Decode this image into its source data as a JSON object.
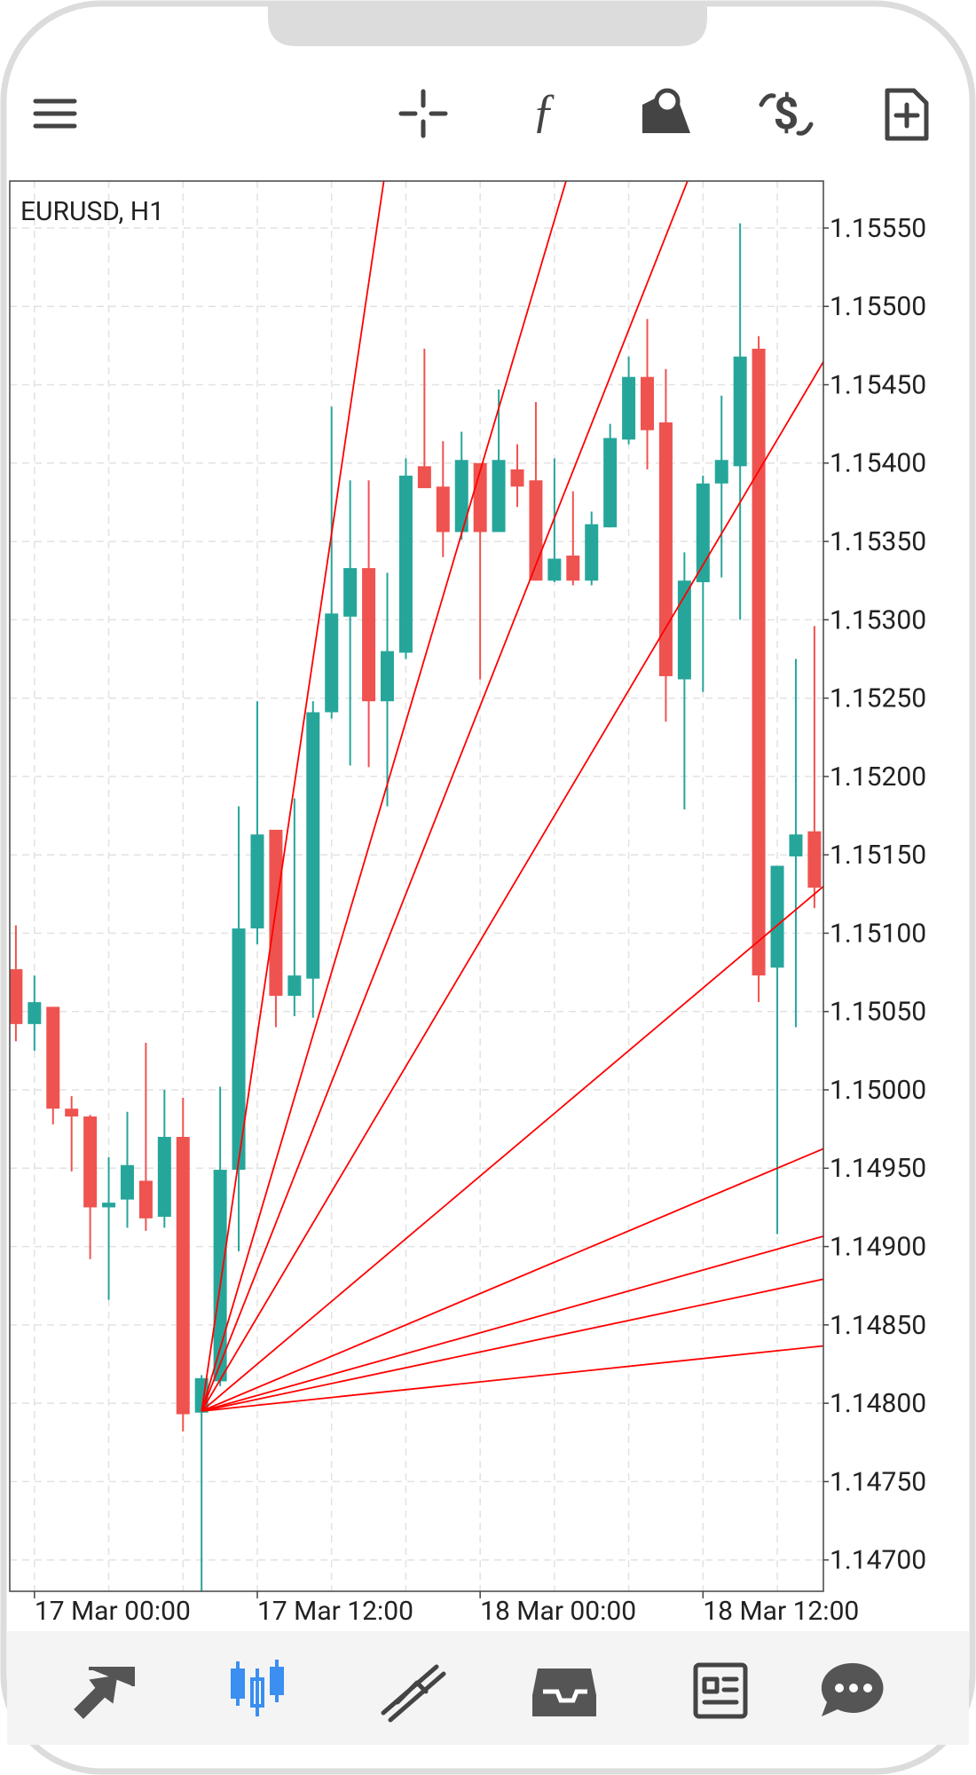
{
  "chart_data": {
    "type": "candlestick",
    "title": "EURUSD, H1",
    "categories": [
      null,
      "17 Mar 00:00",
      null,
      null,
      null,
      null,
      null,
      null,
      null,
      null,
      null,
      null,
      null,
      "17 Mar 12:00",
      null,
      null,
      null,
      null,
      null,
      null,
      null,
      null,
      null,
      null,
      null,
      "18 Mar 00:00",
      null,
      null,
      null,
      null,
      null,
      null,
      null,
      null,
      null,
      null,
      null,
      "18 Mar 12:00",
      null,
      null,
      null,
      null,
      null,
      null
    ],
    "open": [
      1.15077,
      1.15042,
      1.15053,
      1.14988,
      1.14983,
      1.14925,
      1.1493,
      1.14942,
      1.14919,
      1.1497,
      1.14794,
      1.14814,
      1.14949,
      1.15103,
      1.15166,
      1.1506,
      1.15071,
      1.15241,
      1.15302,
      1.15333,
      1.15248,
      1.15279,
      1.15398,
      1.15385,
      1.15356,
      1.154,
      1.15356,
      1.15396,
      1.15389,
      1.15325,
      1.15341,
      1.15325,
      1.15359,
      1.15415,
      1.15455,
      1.15426,
      1.15262,
      1.15324,
      1.15387,
      1.15398,
      1.15473,
      1.15078,
      1.15149,
      1.15165
    ],
    "high": [
      1.15105,
      1.15073,
      1.15053,
      1.14996,
      1.14984,
      1.14957,
      1.14986,
      1.1503,
      1.15,
      1.14995,
      1.14818,
      1.15002,
      1.15181,
      1.15248,
      1.15166,
      1.15186,
      1.15248,
      1.15436,
      1.15389,
      1.15389,
      1.1533,
      1.15403,
      1.15473,
      1.15414,
      1.1542,
      1.154,
      1.15447,
      1.15412,
      1.15439,
      1.15403,
      1.15382,
      1.15369,
      1.15425,
      1.15468,
      1.15492,
      1.1546,
      1.15343,
      1.15392,
      1.15443,
      1.15553,
      1.15481,
      1.15143,
      1.15275,
      1.15296
    ],
    "low": [
      1.15031,
      1.15025,
      1.14978,
      1.14948,
      1.14892,
      1.14866,
      1.14912,
      1.1491,
      1.14912,
      1.14782,
      1.1468,
      1.14811,
      1.14897,
      1.15093,
      1.1504,
      1.15047,
      1.15046,
      1.15237,
      1.15207,
      1.15206,
      1.15181,
      1.15275,
      1.15384,
      1.1534,
      1.15351,
      1.15262,
      1.15356,
      1.15372,
      1.15325,
      1.15324,
      1.15322,
      1.15322,
      1.15359,
      1.15412,
      1.15396,
      1.15235,
      1.15179,
      1.15254,
      1.15327,
      1.153,
      1.15056,
      1.14908,
      1.1504,
      1.15116
    ],
    "close": [
      1.15042,
      1.15056,
      1.14988,
      1.14983,
      1.14925,
      1.14928,
      1.14952,
      1.14918,
      1.1497,
      1.14793,
      1.14816,
      1.14949,
      1.15103,
      1.15163,
      1.1506,
      1.15073,
      1.15241,
      1.15304,
      1.15333,
      1.15248,
      1.1528,
      1.15392,
      1.15384,
      1.15356,
      1.15402,
      1.15356,
      1.15402,
      1.15385,
      1.15325,
      1.15339,
      1.15325,
      1.15361,
      1.15416,
      1.15455,
      1.15421,
      1.15264,
      1.15325,
      1.15387,
      1.15402,
      1.15468,
      1.15073,
      1.15143,
      1.15163,
      1.15129
    ],
    "up_color": "#26a69a",
    "down_color": "#ef5350",
    "ylim": [
      1.1468,
      1.1558
    ],
    "yticks": [
      {
        "value": 1.147,
        "label": "1.14700"
      },
      {
        "value": 1.1475,
        "label": "1.14750"
      },
      {
        "value": 1.148,
        "label": "1.14800"
      },
      {
        "value": 1.1485,
        "label": "1.14850"
      },
      {
        "value": 1.149,
        "label": "1.14900"
      },
      {
        "value": 1.1495,
        "label": "1.14950"
      },
      {
        "value": 1.15,
        "label": "1.15000"
      },
      {
        "value": 1.1505,
        "label": "1.15050"
      },
      {
        "value": 1.151,
        "label": "1.15100"
      },
      {
        "value": 1.1515,
        "label": "1.15150"
      },
      {
        "value": 1.152,
        "label": "1.15200"
      },
      {
        "value": 1.1525,
        "label": "1.15250"
      },
      {
        "value": 1.153,
        "label": "1.15300"
      },
      {
        "value": 1.1535,
        "label": "1.15350"
      },
      {
        "value": 1.154,
        "label": "1.15400"
      },
      {
        "value": 1.1545,
        "label": "1.15450"
      },
      {
        "value": 1.155,
        "label": "1.15500"
      },
      {
        "value": 1.1555,
        "label": "1.15550"
      }
    ],
    "grid": true,
    "fan": {
      "color": "#ff0000",
      "origin": {
        "x": 10,
        "y": 1.14795
      },
      "lines": [
        {
          "x": 43,
          "y": 1.17435
        },
        {
          "x": 43,
          "y": 1.16115
        },
        {
          "x": 43,
          "y": 1.15785
        },
        {
          "x": 43,
          "y": 1.15455
        },
        {
          "x": 43,
          "y": 1.15125
        },
        {
          "x": 43,
          "y": 1.1496
        },
        {
          "x": 43,
          "y": 1.14905
        },
        {
          "x": 43,
          "y": 1.14878
        },
        {
          "x": 43,
          "y": 1.14836
        }
      ]
    }
  }
}
